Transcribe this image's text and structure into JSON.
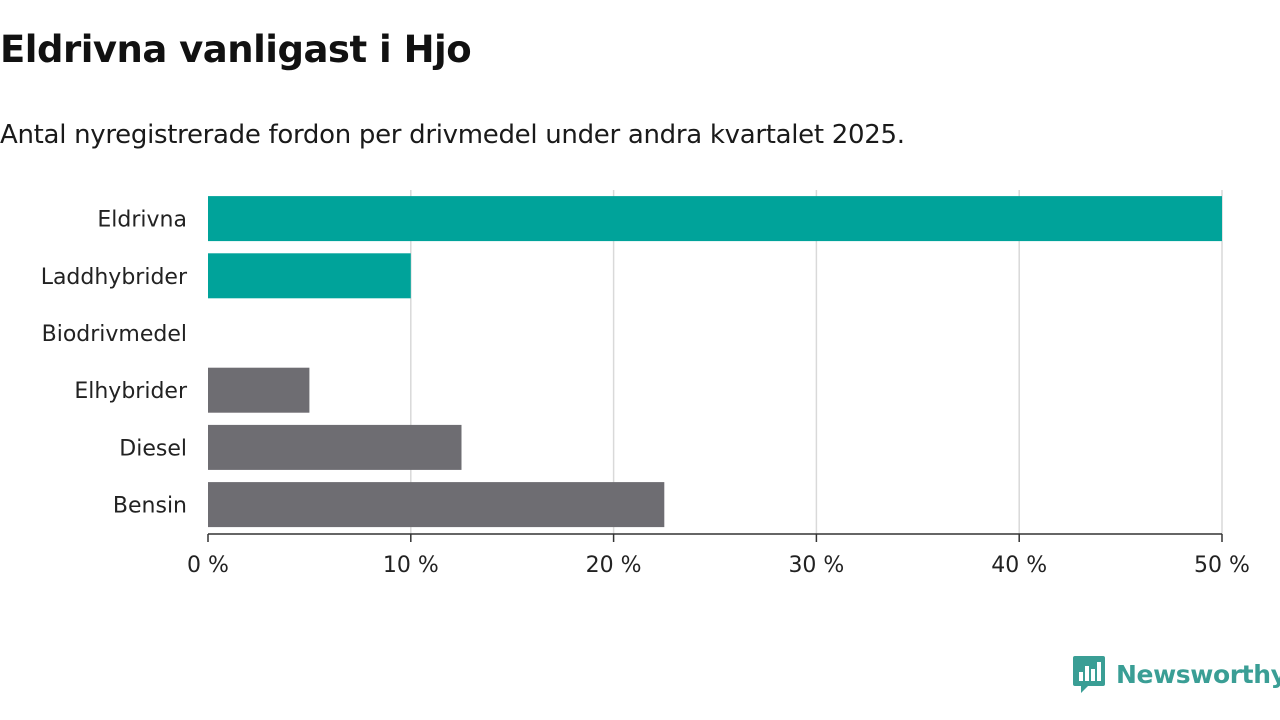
{
  "title": "Eldrivna vanligast i Hjo",
  "subtitle": "Antal nyregistrerade fordon per drivmedel under andra kvartalet 2025.",
  "brand": {
    "name": "Newsworthy",
    "icon": "newsworthy-logo-icon",
    "color": "#3a9e95"
  },
  "colors": {
    "highlight": "#00a39a",
    "other": "#6e6d72",
    "grid": "#d9d9d9",
    "axis": "#333333"
  },
  "chart_data": {
    "type": "bar",
    "orientation": "horizontal",
    "categories": [
      "Eldrivna",
      "Laddhybrider",
      "Biodrivmedel",
      "Elhybrider",
      "Diesel",
      "Bensin"
    ],
    "values": [
      50,
      10,
      0,
      5,
      12.5,
      22.5
    ],
    "bar_colors": [
      "#00a39a",
      "#00a39a",
      "#6e6d72",
      "#6e6d72",
      "#6e6d72",
      "#6e6d72"
    ],
    "xlim": [
      0,
      50
    ],
    "xticks": [
      0,
      10,
      20,
      30,
      40,
      50
    ],
    "xtick_labels": [
      "0 %",
      "10 %",
      "20 %",
      "30 %",
      "40 %",
      "50 %"
    ],
    "unit": "%",
    "grid": true
  }
}
